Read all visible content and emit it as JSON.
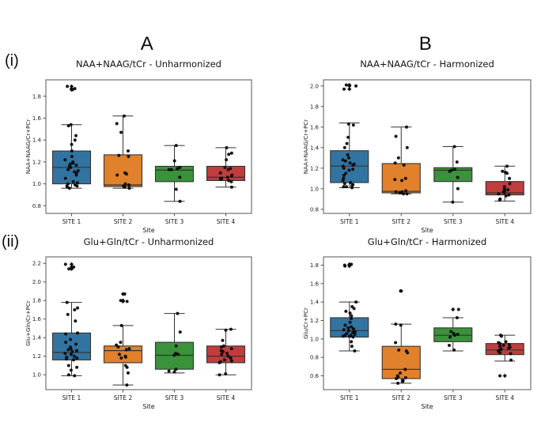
{
  "figure": {
    "column_labels": [
      {
        "text": "A"
      },
      {
        "text": "B"
      }
    ],
    "row_labels": [
      {
        "text": "(i)"
      },
      {
        "text": "(ii)"
      }
    ],
    "background": "#ffffff",
    "point_color": "#0c0c0c",
    "box_edge_color": "#333333",
    "spine_color": "#555555"
  },
  "chart_data": [
    {
      "type": "box",
      "title": "NAA+NAAG/tCr - Unharmonized",
      "xlabel": "Site",
      "ylabel": "NAA+NAAG/Cr+PCr",
      "categories": [
        "SITE 1",
        "SITE 2",
        "SITE 3",
        "SITE 4"
      ],
      "box_colors": [
        "#3274a1",
        "#e1812c",
        "#3a923a",
        "#c03d3e"
      ],
      "yticks": [
        0.8,
        1.0,
        1.2,
        1.4,
        1.6,
        1.8
      ],
      "ylim": [
        0.73,
        1.95
      ],
      "grid": false,
      "legend": "none",
      "boxes": [
        {
          "whislo": 0.96,
          "q1": 1.0,
          "med": 1.15,
          "q3": 1.3,
          "whishi": 1.54,
          "fliers": [
            1.89,
            1.87,
            1.86
          ],
          "points": [
            1.89,
            1.87,
            1.86,
            1.54,
            1.53,
            1.44,
            1.4,
            1.36,
            1.3,
            1.25,
            1.22,
            1.2,
            1.19,
            1.18,
            1.17,
            1.16,
            1.15,
            1.13,
            1.12,
            1.11,
            1.1,
            1.08,
            1.05,
            1.02,
            1.01,
            1.0,
            0.99,
            0.98,
            0.98,
            0.97,
            0.96
          ]
        },
        {
          "whislo": 0.96,
          "q1": 0.975,
          "med": 0.99,
          "q3": 1.265,
          "whishi": 1.62,
          "fliers": [],
          "points": [
            1.62,
            1.55,
            1.47,
            1.3,
            1.26,
            1.25,
            1.1,
            1.09,
            1.08,
            1.0,
            0.99,
            0.98,
            0.98,
            0.97,
            0.97,
            0.96
          ]
        },
        {
          "whislo": 0.84,
          "q1": 1.02,
          "med": 1.125,
          "q3": 1.16,
          "whishi": 1.35,
          "fliers": [],
          "points": [
            1.35,
            1.21,
            1.15,
            1.14,
            1.13,
            1.13,
            1.06,
            0.95,
            0.84
          ]
        },
        {
          "whislo": 0.97,
          "q1": 1.03,
          "med": 1.06,
          "q3": 1.16,
          "whishi": 1.33,
          "fliers": [],
          "points": [
            1.33,
            1.28,
            1.27,
            1.22,
            1.15,
            1.14,
            1.13,
            1.1,
            1.08,
            1.07,
            1.06,
            1.05,
            1.05,
            1.04,
            1.03,
            1.02,
            0.97
          ]
        }
      ]
    },
    {
      "type": "box",
      "title": "NAA+NAAG/tCr - Harmonized",
      "xlabel": "Site",
      "ylabel": "NAA+NAAG/Cr+PCr",
      "categories": [
        "SITE 1",
        "SITE 2",
        "SITE 3",
        "SITE 4"
      ],
      "box_colors": [
        "#3274a1",
        "#e1812c",
        "#3a923a",
        "#c03d3e"
      ],
      "yticks": [
        0.8,
        1.0,
        1.2,
        1.4,
        1.6,
        1.8,
        2.0
      ],
      "ylim": [
        0.76,
        2.06
      ],
      "grid": false,
      "legend": "none",
      "boxes": [
        {
          "whislo": 1.01,
          "q1": 1.06,
          "med": 1.22,
          "q3": 1.37,
          "whishi": 1.64,
          "fliers": [
            2.01,
            2.0,
            1.97
          ],
          "points": [
            2.01,
            2.0,
            1.97,
            1.63,
            1.62,
            1.5,
            1.44,
            1.4,
            1.33,
            1.3,
            1.28,
            1.27,
            1.25,
            1.24,
            1.23,
            1.22,
            1.2,
            1.19,
            1.18,
            1.15,
            1.13,
            1.1,
            1.08,
            1.06,
            1.05,
            1.04,
            1.03,
            1.02,
            1.02,
            1.01
          ]
        },
        {
          "whislo": 0.95,
          "q1": 0.96,
          "med": 0.975,
          "q3": 1.245,
          "whishi": 1.6,
          "fliers": [],
          "points": [
            1.6,
            1.51,
            1.4,
            1.3,
            1.25,
            1.23,
            1.1,
            1.09,
            1.08,
            0.98,
            0.97,
            0.97,
            0.96,
            0.96,
            0.95,
            0.95
          ]
        },
        {
          "whislo": 0.87,
          "q1": 1.07,
          "med": 1.18,
          "q3": 1.205,
          "whishi": 1.41,
          "fliers": [],
          "points": [
            1.41,
            1.26,
            1.19,
            1.18,
            1.17,
            1.11,
            1.0,
            0.87
          ]
        },
        {
          "whislo": 0.88,
          "q1": 0.94,
          "med": 0.96,
          "q3": 1.07,
          "whishi": 1.22,
          "fliers": [],
          "points": [
            1.22,
            1.17,
            1.16,
            1.15,
            1.1,
            1.05,
            1.02,
            1.0,
            0.99,
            0.98,
            0.97,
            0.96,
            0.95,
            0.94,
            0.93,
            0.9,
            0.89
          ]
        }
      ]
    },
    {
      "type": "box",
      "title": "Glu+Gln/tCr - Unharmonized",
      "xlabel": "Site",
      "ylabel": "Glu+Gln/Cr+PCr",
      "categories": [
        "SITE 1",
        "SITE 2",
        "SITE 3",
        "SITE 4"
      ],
      "box_colors": [
        "#3274a1",
        "#e1812c",
        "#3a923a",
        "#c03d3e"
      ],
      "yticks": [
        1.0,
        1.2,
        1.4,
        1.6,
        1.8,
        2.0,
        2.2
      ],
      "ylim": [
        0.84,
        2.27
      ],
      "grid": false,
      "legend": "none",
      "boxes": [
        {
          "whislo": 0.99,
          "q1": 1.16,
          "med": 1.24,
          "q3": 1.45,
          "whishi": 1.78,
          "fliers": [
            2.19,
            2.16,
            2.14
          ],
          "points": [
            2.19,
            2.16,
            2.14,
            1.78,
            1.72,
            1.7,
            1.65,
            1.58,
            1.45,
            1.44,
            1.38,
            1.35,
            1.33,
            1.3,
            1.28,
            1.27,
            1.26,
            1.25,
            1.23,
            1.22,
            1.2,
            1.19,
            1.18,
            1.17,
            1.16,
            1.1,
            1.08,
            1.05,
            1.0,
            0.99
          ]
        },
        {
          "whislo": 0.89,
          "q1": 1.13,
          "med": 1.26,
          "q3": 1.31,
          "whishi": 1.53,
          "fliers": [
            1.87,
            1.8,
            1.79
          ],
          "points": [
            1.87,
            1.8,
            1.79,
            1.53,
            1.35,
            1.32,
            1.3,
            1.28,
            1.27,
            1.22,
            1.2,
            1.19,
            1.18,
            1.1,
            1.08,
            1.02,
            0.89
          ]
        },
        {
          "whislo": 1.02,
          "q1": 1.06,
          "med": 1.21,
          "q3": 1.35,
          "whishi": 1.66,
          "fliers": [],
          "points": [
            1.66,
            1.46,
            1.31,
            1.23,
            1.22,
            1.21,
            1.06,
            1.04,
            1.03
          ]
        },
        {
          "whislo": 1.0,
          "q1": 1.13,
          "med": 1.2,
          "q3": 1.31,
          "whishi": 1.49,
          "fliers": [],
          "points": [
            1.49,
            1.48,
            1.37,
            1.31,
            1.3,
            1.28,
            1.26,
            1.25,
            1.23,
            1.22,
            1.2,
            1.18,
            1.16,
            1.15,
            1.14,
            1.13,
            1.01,
            1.0
          ]
        }
      ]
    },
    {
      "type": "box",
      "title": "Glu+Gln/tCr - Harmonized",
      "xlabel": "Site",
      "ylabel": "Glu/Cr+PCr",
      "categories": [
        "SITE 1",
        "SITE 2",
        "SITE 3",
        "SITE 4"
      ],
      "box_colors": [
        "#3274a1",
        "#e1812c",
        "#3a923a",
        "#c03d3e"
      ],
      "yticks": [
        0.6,
        0.8,
        1.0,
        1.2,
        1.4,
        1.6,
        1.8
      ],
      "ylim": [
        0.45,
        1.89
      ],
      "grid": false,
      "legend": "none",
      "boxes": [
        {
          "whislo": 0.87,
          "q1": 1.02,
          "med": 1.09,
          "q3": 1.23,
          "whishi": 1.4,
          "fliers": [
            1.81,
            1.8,
            1.79
          ],
          "points": [
            1.81,
            1.8,
            1.79,
            1.4,
            1.35,
            1.33,
            1.3,
            1.28,
            1.25,
            1.22,
            1.18,
            1.15,
            1.13,
            1.12,
            1.11,
            1.1,
            1.09,
            1.08,
            1.07,
            1.06,
            1.05,
            1.04,
            1.04,
            1.03,
            1.03,
            1.02,
            0.97,
            0.92,
            0.87
          ]
        },
        {
          "whislo": 0.52,
          "q1": 0.57,
          "med": 0.67,
          "q3": 0.92,
          "whishi": 1.16,
          "fliers": [
            1.52
          ],
          "points": [
            1.52,
            1.16,
            1.15,
            0.96,
            0.88,
            0.87,
            0.85,
            0.67,
            0.63,
            0.6,
            0.59,
            0.58,
            0.57,
            0.55,
            0.54,
            0.52
          ]
        },
        {
          "whislo": 0.87,
          "q1": 0.97,
          "med": 1.04,
          "q3": 1.12,
          "whishi": 1.23,
          "fliers": [
            1.32
          ],
          "points": [
            1.32,
            1.23,
            1.08,
            1.06,
            1.05,
            1.04,
            1.02,
            0.93,
            0.88
          ]
        },
        {
          "whislo": 0.76,
          "q1": 0.83,
          "med": 0.88,
          "q3": 0.95,
          "whishi": 1.04,
          "fliers": [
            0.6
          ],
          "points": [
            1.04,
            1.03,
            0.97,
            0.96,
            0.95,
            0.94,
            0.93,
            0.92,
            0.91,
            0.9,
            0.89,
            0.88,
            0.87,
            0.86,
            0.85,
            0.84,
            0.77,
            0.6
          ]
        }
      ]
    }
  ]
}
